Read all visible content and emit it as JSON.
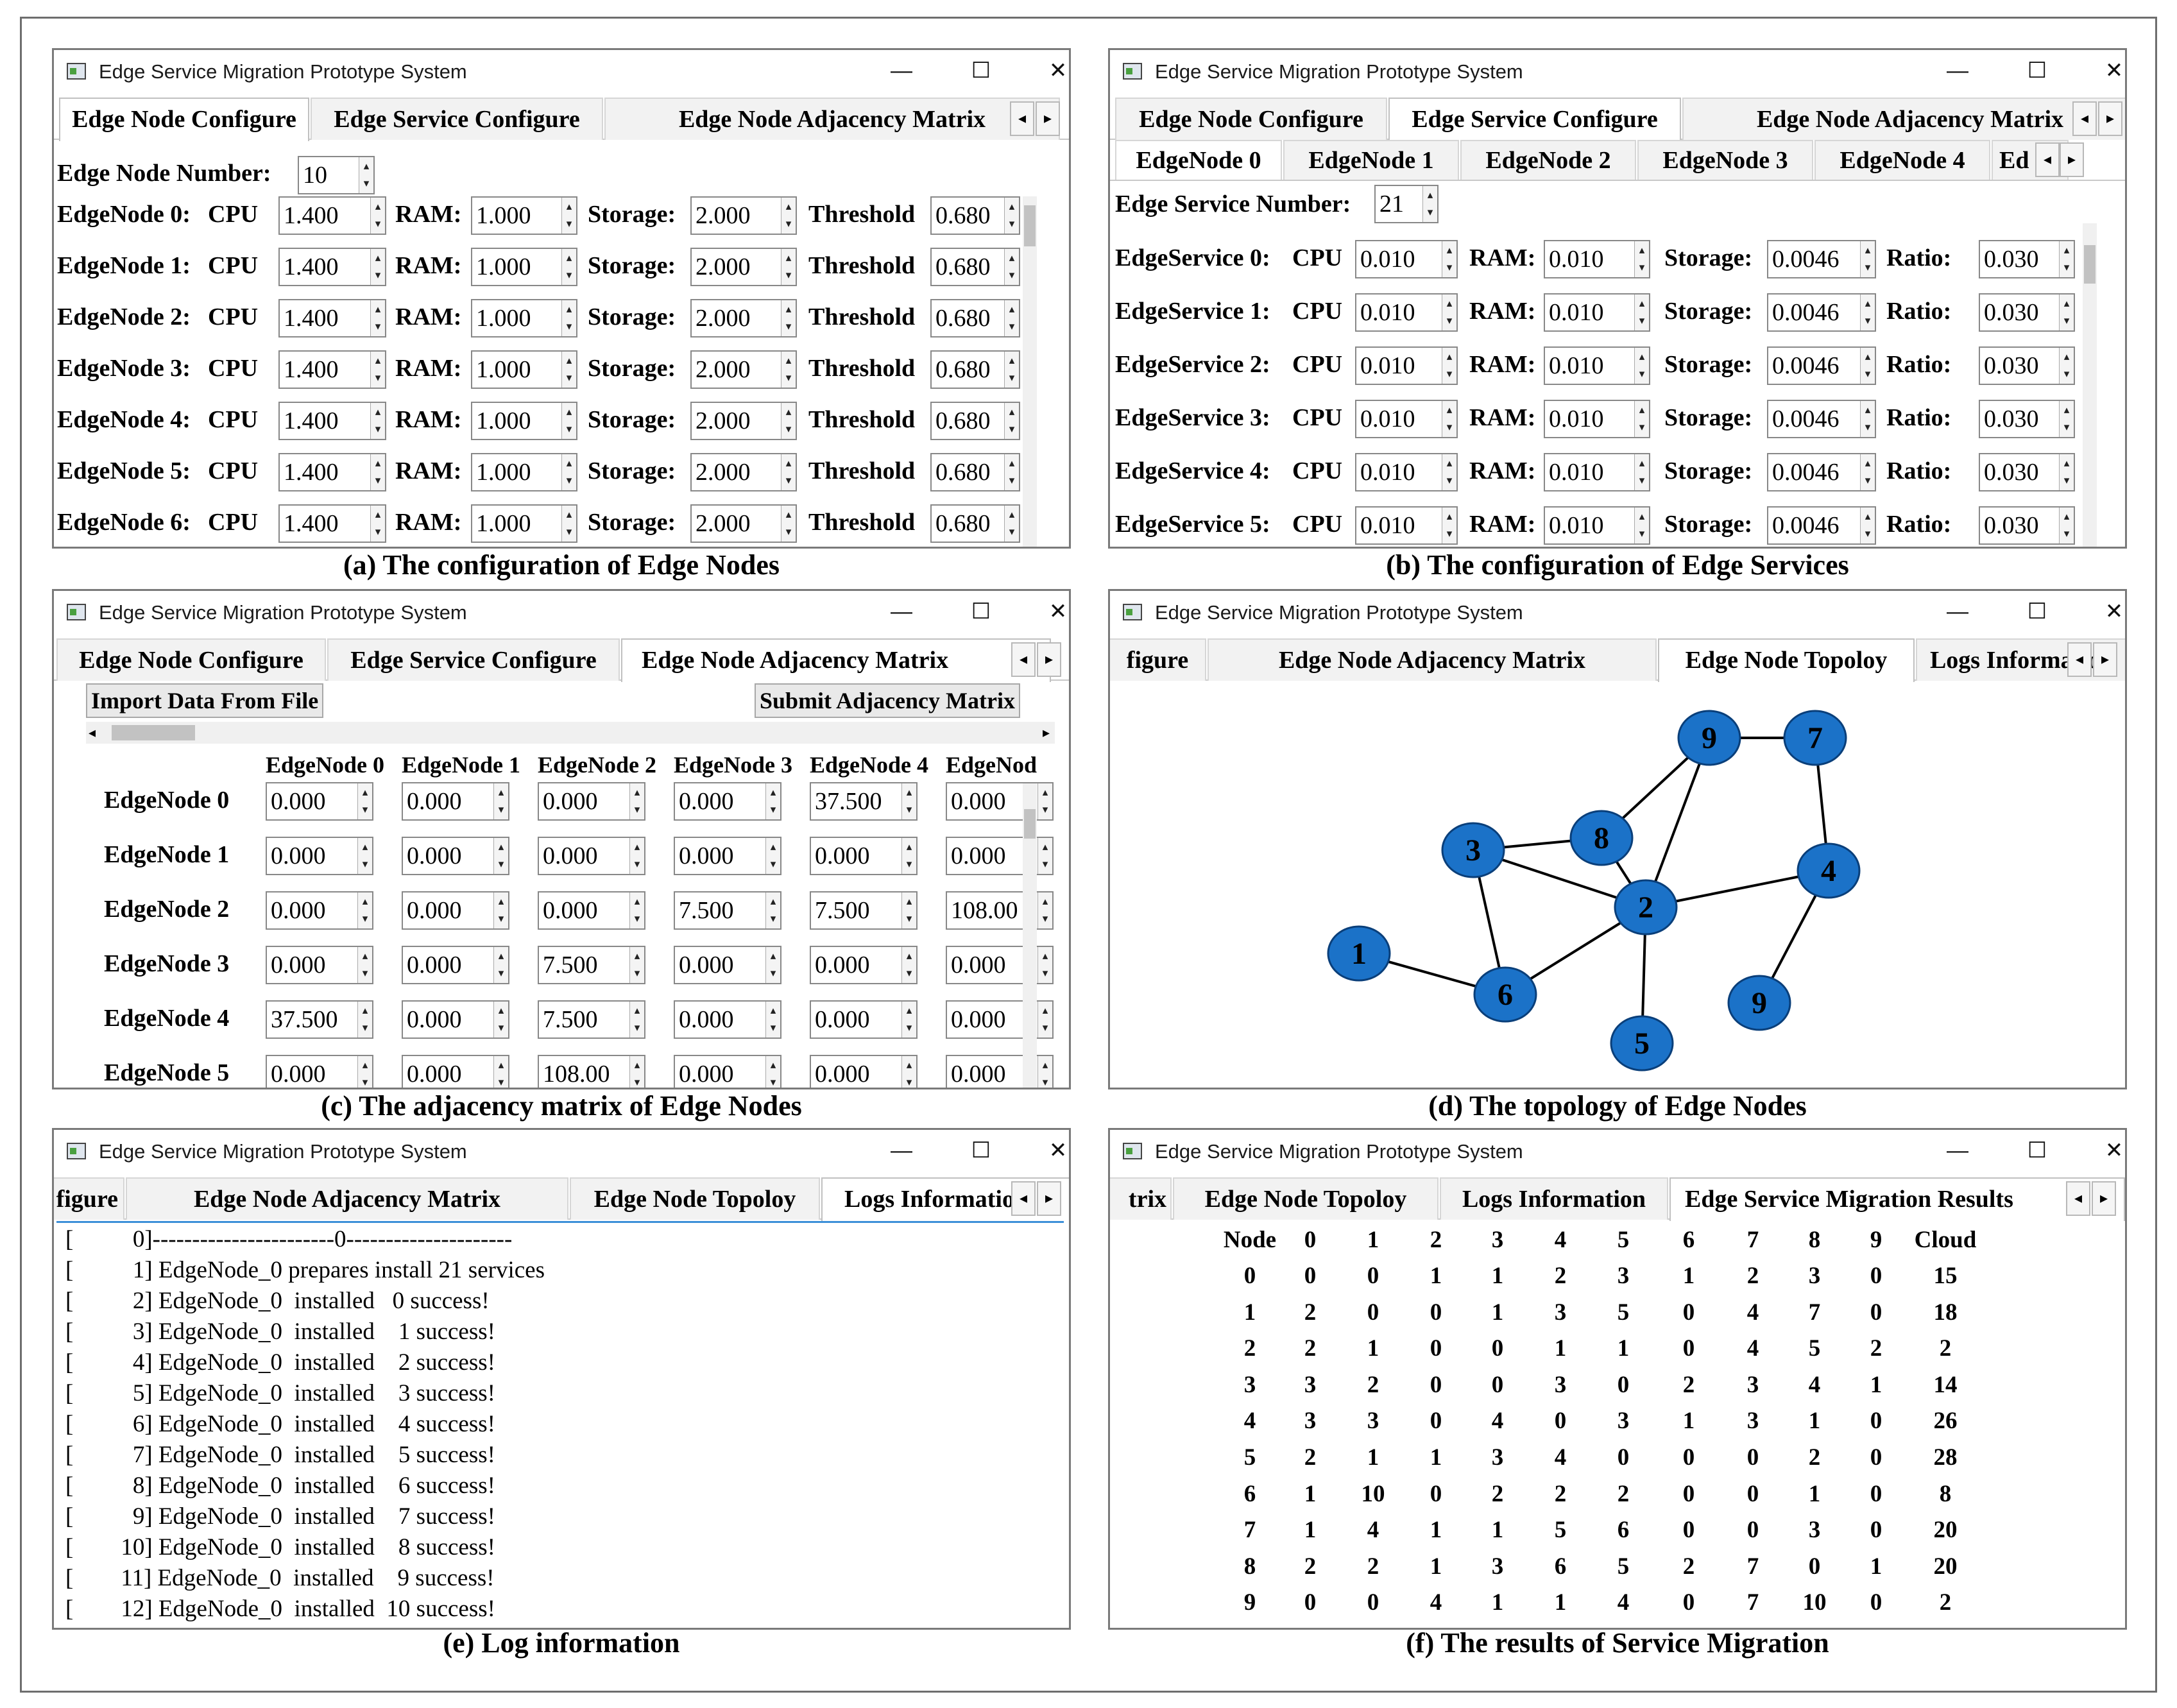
{
  "app_title": "Edge Service Migration Prototype System",
  "window_controls": {
    "minimize": "—",
    "maximize": "☐",
    "close": "✕"
  },
  "scroll_arrows": {
    "left": "◂",
    "right": "▸"
  },
  "colors": {
    "node_fill": "#1b72c8",
    "node_stroke": "#0a3f7a",
    "edge": "#000000",
    "log_focus": "#3c8fd8"
  },
  "captions": {
    "a": "(a) The configuration of Edge Nodes",
    "b": "(b)  The configuration of Edge Services",
    "c": "(c) The adjacency matrix of Edge Nodes",
    "d": "(d) The topology of Edge Nodes",
    "e": "(e)  Log information",
    "f": "(f) The results of  Service Migration"
  },
  "panel_a": {
    "tabs": [
      "Edge Node Configure",
      "Edge Service Configure",
      "Edge Node Adjacency Matrix"
    ],
    "node_number_label": "Edge Node Number:",
    "node_number": "10",
    "cpu_label": "CPU",
    "ram_label": "RAM:",
    "storage_label": "Storage:",
    "threshold_label": "Threshold",
    "rows": [
      {
        "name": "EdgeNode 0:",
        "cpu": "1.400",
        "ram": "1.000",
        "storage": "2.000",
        "threshold": "0.680"
      },
      {
        "name": "EdgeNode 1:",
        "cpu": "1.400",
        "ram": "1.000",
        "storage": "2.000",
        "threshold": "0.680"
      },
      {
        "name": "EdgeNode 2:",
        "cpu": "1.400",
        "ram": "1.000",
        "storage": "2.000",
        "threshold": "0.680"
      },
      {
        "name": "EdgeNode 3:",
        "cpu": "1.400",
        "ram": "1.000",
        "storage": "2.000",
        "threshold": "0.680"
      },
      {
        "name": "EdgeNode 4:",
        "cpu": "1.400",
        "ram": "1.000",
        "storage": "2.000",
        "threshold": "0.680"
      },
      {
        "name": "EdgeNode 5:",
        "cpu": "1.400",
        "ram": "1.000",
        "storage": "2.000",
        "threshold": "0.680"
      },
      {
        "name": "EdgeNode 6:",
        "cpu": "1.400",
        "ram": "1.000",
        "storage": "2.000",
        "threshold": "0.680"
      }
    ]
  },
  "panel_b": {
    "tabs": [
      "Edge Node Configure",
      "Edge Service Configure",
      "Edge Node Adjacency Matrix"
    ],
    "subtabs": [
      "EdgeNode 0",
      "EdgeNode 1",
      "EdgeNode 2",
      "EdgeNode 3",
      "EdgeNode 4",
      "Ed"
    ],
    "service_number_label": "Edge Service Number:",
    "service_number": "21",
    "cpu_label": "CPU",
    "ram_label": "RAM:",
    "storage_label": "Storage:",
    "ratio_label": "Ratio:",
    "rows": [
      {
        "name": "EdgeService 0:",
        "cpu": "0.010",
        "ram": "0.010",
        "storage": "0.0046",
        "ratio": "0.030"
      },
      {
        "name": "EdgeService 1:",
        "cpu": "0.010",
        "ram": "0.010",
        "storage": "0.0046",
        "ratio": "0.030"
      },
      {
        "name": "EdgeService 2:",
        "cpu": "0.010",
        "ram": "0.010",
        "storage": "0.0046",
        "ratio": "0.030"
      },
      {
        "name": "EdgeService 3:",
        "cpu": "0.010",
        "ram": "0.010",
        "storage": "0.0046",
        "ratio": "0.030"
      },
      {
        "name": "EdgeService 4:",
        "cpu": "0.010",
        "ram": "0.010",
        "storage": "0.0046",
        "ratio": "0.030"
      },
      {
        "name": "EdgeService 5:",
        "cpu": "0.010",
        "ram": "0.010",
        "storage": "0.0046",
        "ratio": "0.030"
      }
    ]
  },
  "panel_c": {
    "tabs": [
      "Edge Node Configure",
      "Edge Service Configure",
      "Edge Node Adjacency Matrix"
    ],
    "import_button": "Import Data From File",
    "submit_button": "Submit Adjacency Matrix",
    "col_headers": [
      "EdgeNode 0",
      "EdgeNode 1",
      "EdgeNode 2",
      "EdgeNode 3",
      "EdgeNode 4",
      "EdgeNod"
    ],
    "rows": [
      {
        "name": "EdgeNode 0",
        "values": [
          "0.000",
          "0.000",
          "0.000",
          "0.000",
          "37.500",
          "0.000"
        ]
      },
      {
        "name": "EdgeNode 1",
        "values": [
          "0.000",
          "0.000",
          "0.000",
          "0.000",
          "0.000",
          "0.000"
        ]
      },
      {
        "name": "EdgeNode 2",
        "values": [
          "0.000",
          "0.000",
          "0.000",
          "7.500",
          "7.500",
          "108.00"
        ]
      },
      {
        "name": "EdgeNode 3",
        "values": [
          "0.000",
          "0.000",
          "7.500",
          "0.000",
          "0.000",
          "0.000"
        ]
      },
      {
        "name": "EdgeNode 4",
        "values": [
          "37.500",
          "0.000",
          "7.500",
          "0.000",
          "0.000",
          "0.000"
        ]
      },
      {
        "name": "EdgeNode 5",
        "values": [
          "0.000",
          "0.000",
          "108.00",
          "0.000",
          "0.000",
          "0.000"
        ]
      }
    ]
  },
  "panel_d": {
    "tabs": [
      "figure",
      "Edge Node Adjacency Matrix",
      "Edge Node Topoloy",
      "Logs Information"
    ],
    "nodes": [
      {
        "label": "9"
      },
      {
        "label": "7"
      },
      {
        "label": "8"
      },
      {
        "label": "3"
      },
      {
        "label": "4"
      },
      {
        "label": "2"
      },
      {
        "label": "1"
      },
      {
        "label": "6"
      },
      {
        "label": "9"
      },
      {
        "label": "5"
      }
    ],
    "edges": [
      [
        0,
        1
      ],
      [
        0,
        2
      ],
      [
        0,
        5
      ],
      [
        1,
        4
      ],
      [
        2,
        3
      ],
      [
        2,
        5
      ],
      [
        3,
        5
      ],
      [
        3,
        7
      ],
      [
        4,
        5
      ],
      [
        4,
        8
      ],
      [
        5,
        7
      ],
      [
        5,
        9
      ],
      [
        6,
        7
      ]
    ]
  },
  "panel_e": {
    "tabs": [
      "figure",
      "Edge Node Adjacency Matrix",
      "Edge Node Topoloy",
      "Logs Information"
    ],
    "lines": [
      "[          0]-----------------------0---------------------",
      "[          1] EdgeNode_0 prepares install 21 services",
      "[          2] EdgeNode_0  installed   0 success!",
      "[          3] EdgeNode_0  installed    1 success!",
      "[          4] EdgeNode_0  installed    2 success!",
      "[          5] EdgeNode_0  installed    3 success!",
      "[          6] EdgeNode_0  installed    4 success!",
      "[          7] EdgeNode_0  installed    5 success!",
      "[          8] EdgeNode_0  installed    6 success!",
      "[          9] EdgeNode_0  installed    7 success!",
      "[        10] EdgeNode_0  installed    8 success!",
      "[        11] EdgeNode_0  installed    9 success!",
      "[        12] EdgeNode_0  installed  10 success!"
    ]
  },
  "panel_f": {
    "tabs": [
      "trix",
      "Edge Node Topoloy",
      "Logs Information",
      "Edge Service Migration Results"
    ],
    "header": [
      "Node",
      "0",
      "1",
      "2",
      "3",
      "4",
      "5",
      "6",
      "7",
      "8",
      "9",
      "Cloud"
    ],
    "rows": [
      [
        "0",
        "0",
        "0",
        "1",
        "1",
        "2",
        "3",
        "1",
        "2",
        "3",
        "0",
        "15"
      ],
      [
        "1",
        "2",
        "0",
        "0",
        "1",
        "3",
        "5",
        "0",
        "4",
        "7",
        "0",
        "18"
      ],
      [
        "2",
        "2",
        "1",
        "0",
        "0",
        "1",
        "1",
        "0",
        "4",
        "5",
        "2",
        "2"
      ],
      [
        "3",
        "3",
        "2",
        "0",
        "0",
        "3",
        "0",
        "2",
        "3",
        "4",
        "1",
        "14"
      ],
      [
        "4",
        "3",
        "3",
        "0",
        "4",
        "0",
        "3",
        "1",
        "3",
        "1",
        "0",
        "26"
      ],
      [
        "5",
        "2",
        "1",
        "1",
        "3",
        "4",
        "0",
        "0",
        "0",
        "2",
        "0",
        "28"
      ],
      [
        "6",
        "1",
        "10",
        "0",
        "2",
        "2",
        "2",
        "0",
        "0",
        "1",
        "0",
        "8"
      ],
      [
        "7",
        "1",
        "4",
        "1",
        "1",
        "5",
        "6",
        "0",
        "0",
        "3",
        "0",
        "20"
      ],
      [
        "8",
        "2",
        "2",
        "1",
        "3",
        "6",
        "5",
        "2",
        "7",
        "0",
        "1",
        "20"
      ],
      [
        "9",
        "0",
        "0",
        "4",
        "1",
        "1",
        "4",
        "0",
        "7",
        "10",
        "0",
        "2"
      ]
    ]
  }
}
